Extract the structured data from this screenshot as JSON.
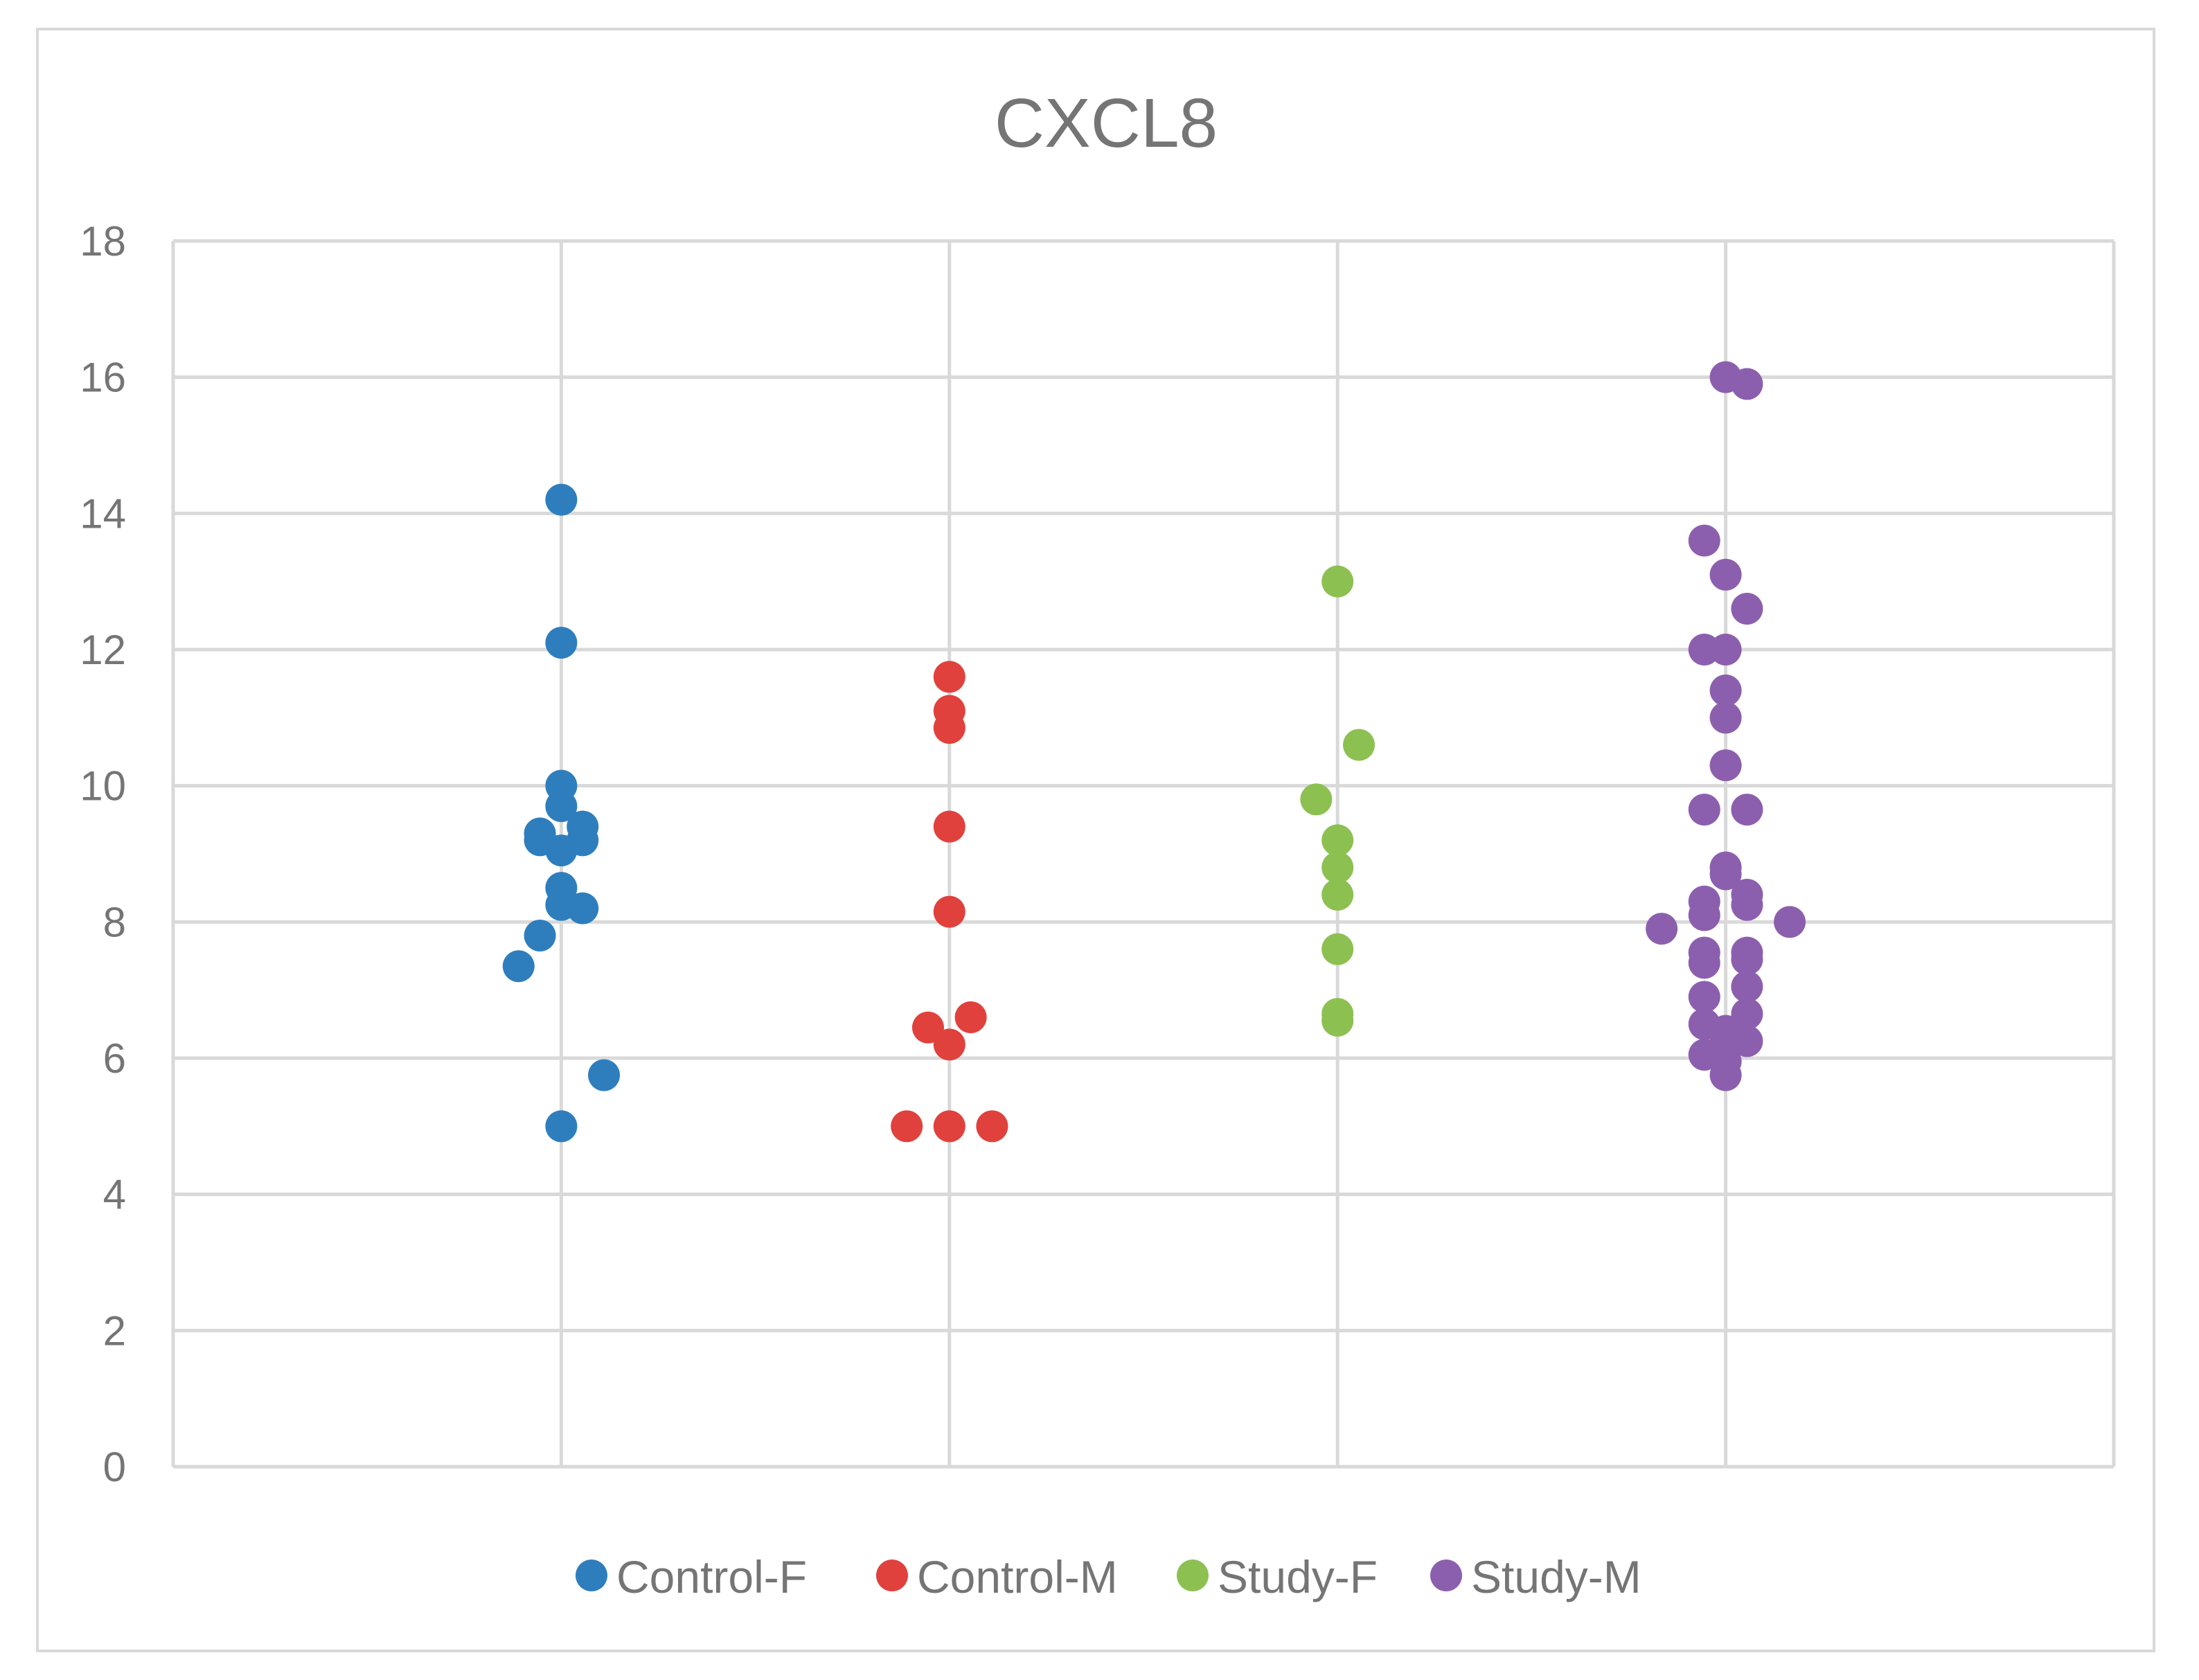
{
  "chart_data": {
    "type": "scatter",
    "title": "CXCL8",
    "xlabel": "",
    "ylabel": "",
    "xlim": [
      0,
      5
    ],
    "ylim": [
      0,
      18
    ],
    "y_ticks": [
      "0",
      "2",
      "4",
      "6",
      "8",
      "10",
      "12",
      "14",
      "16",
      "18"
    ],
    "grid": true,
    "legend_position": "bottom",
    "series": [
      {
        "name": "Control-F",
        "color": "#2e7ebe",
        "points": [
          {
            "x": 1.0,
            "y": 14.2
          },
          {
            "x": 1.0,
            "y": 12.1
          },
          {
            "x": 1.0,
            "y": 10.0
          },
          {
            "x": 1.0,
            "y": 9.7
          },
          {
            "x": 0.945,
            "y": 9.3
          },
          {
            "x": 1.055,
            "y": 9.4
          },
          {
            "x": 0.945,
            "y": 9.2
          },
          {
            "x": 1.055,
            "y": 9.2
          },
          {
            "x": 1.0,
            "y": 9.05
          },
          {
            "x": 1.0,
            "y": 8.5
          },
          {
            "x": 1.0,
            "y": 8.25
          },
          {
            "x": 1.055,
            "y": 8.2
          },
          {
            "x": 0.945,
            "y": 7.8
          },
          {
            "x": 0.89,
            "y": 7.35
          },
          {
            "x": 1.11,
            "y": 5.75
          },
          {
            "x": 1.0,
            "y": 5.0
          }
        ]
      },
      {
        "name": "Control-M",
        "color": "#e0413c",
        "points": [
          {
            "x": 2.0,
            "y": 11.6
          },
          {
            "x": 2.0,
            "y": 11.1
          },
          {
            "x": 2.0,
            "y": 10.85
          },
          {
            "x": 2.0,
            "y": 9.4
          },
          {
            "x": 2.0,
            "y": 8.15
          },
          {
            "x": 2.055,
            "y": 6.6
          },
          {
            "x": 1.945,
            "y": 6.45
          },
          {
            "x": 2.0,
            "y": 6.2
          },
          {
            "x": 1.89,
            "y": 5.0
          },
          {
            "x": 2.0,
            "y": 5.0
          },
          {
            "x": 2.11,
            "y": 5.0
          }
        ]
      },
      {
        "name": "Study-F",
        "color": "#8cc152",
        "points": [
          {
            "x": 3.0,
            "y": 13.0
          },
          {
            "x": 3.055,
            "y": 10.6
          },
          {
            "x": 2.945,
            "y": 9.8
          },
          {
            "x": 3.0,
            "y": 9.2
          },
          {
            "x": 3.0,
            "y": 8.8
          },
          {
            "x": 3.0,
            "y": 8.4
          },
          {
            "x": 3.0,
            "y": 7.6
          },
          {
            "x": 3.0,
            "y": 6.65
          },
          {
            "x": 3.0,
            "y": 6.55
          }
        ]
      },
      {
        "name": "Study-M",
        "color": "#8c5fae",
        "points": [
          {
            "x": 4.0,
            "y": 16.0
          },
          {
            "x": 4.055,
            "y": 15.9
          },
          {
            "x": 3.945,
            "y": 13.6
          },
          {
            "x": 4.0,
            "y": 13.1
          },
          {
            "x": 4.055,
            "y": 12.6
          },
          {
            "x": 3.945,
            "y": 12.0
          },
          {
            "x": 4.0,
            "y": 12.0
          },
          {
            "x": 4.0,
            "y": 11.4
          },
          {
            "x": 4.0,
            "y": 11.0
          },
          {
            "x": 4.0,
            "y": 10.3
          },
          {
            "x": 3.945,
            "y": 9.65
          },
          {
            "x": 4.055,
            "y": 9.65
          },
          {
            "x": 4.0,
            "y": 8.8
          },
          {
            "x": 4.0,
            "y": 8.7
          },
          {
            "x": 4.055,
            "y": 8.4
          },
          {
            "x": 3.945,
            "y": 8.3
          },
          {
            "x": 4.055,
            "y": 8.25
          },
          {
            "x": 3.945,
            "y": 8.1
          },
          {
            "x": 4.165,
            "y": 8.0
          },
          {
            "x": 3.835,
            "y": 7.9
          },
          {
            "x": 3.945,
            "y": 7.55
          },
          {
            "x": 4.055,
            "y": 7.55
          },
          {
            "x": 4.055,
            "y": 7.45
          },
          {
            "x": 3.945,
            "y": 7.4
          },
          {
            "x": 4.055,
            "y": 7.05
          },
          {
            "x": 3.945,
            "y": 6.9
          },
          {
            "x": 4.055,
            "y": 6.65
          },
          {
            "x": 3.945,
            "y": 6.5
          },
          {
            "x": 4.0,
            "y": 6.4
          },
          {
            "x": 4.0,
            "y": 6.3
          },
          {
            "x": 4.055,
            "y": 6.25
          },
          {
            "x": 4.0,
            "y": 6.15
          },
          {
            "x": 3.945,
            "y": 6.05
          },
          {
            "x": 4.0,
            "y": 5.95
          },
          {
            "x": 4.0,
            "y": 5.75
          }
        ]
      }
    ]
  }
}
